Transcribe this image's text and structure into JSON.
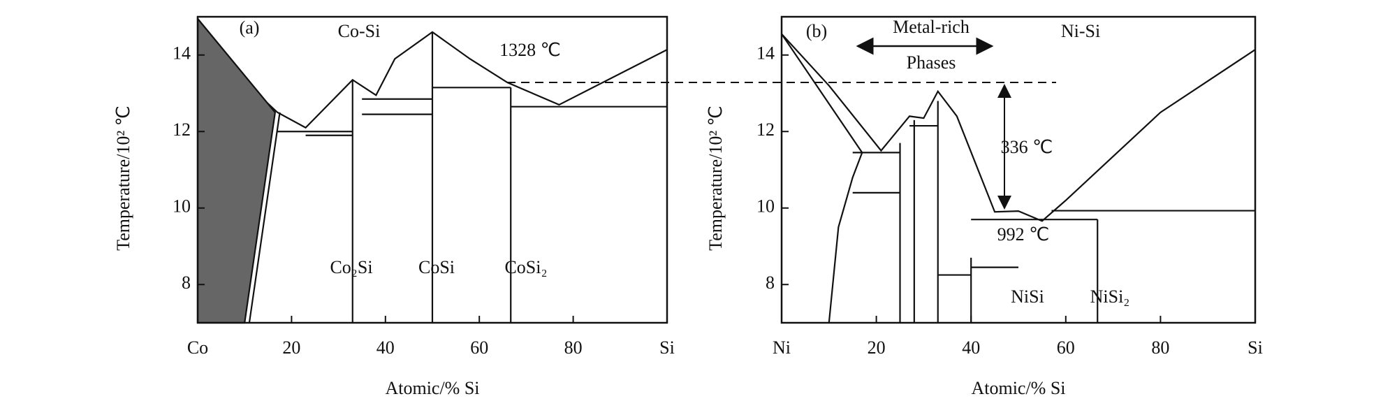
{
  "chart_data": [
    {
      "type": "line",
      "panel": "(a)",
      "system": "Co-Si",
      "xlabel": "Atomic/% Si",
      "ylabel": "Temperature/10² ℃",
      "xlim": [
        0,
        100
      ],
      "ylim": [
        7,
        15
      ],
      "xticks": [
        {
          "value": 0,
          "label": "Co"
        },
        20,
        40,
        60,
        80,
        {
          "value": 100,
          "label": "Si"
        }
      ],
      "yticks": [
        8,
        10,
        12,
        14
      ],
      "annotations": [
        "1328 ℃",
        "Co₂Si",
        "CoSi",
        "CoSi₂"
      ],
      "series": [
        {
          "color": "#111",
          "x": [
            0,
            10,
            17,
            23,
            33,
            38,
            42,
            50,
            58,
            66,
            77,
            100
          ],
          "values": [
            14.95,
            13.3,
            12.5,
            12.1,
            13.35,
            12.95,
            13.9,
            14.6,
            13.9,
            13.28,
            12.7,
            14.14
          ]
        },
        {
          "color": "#111",
          "fill": "#666",
          "x": [
            0,
            16.5,
            10,
            0
          ],
          "values": [
            14.95,
            12.5,
            7,
            7
          ]
        },
        {
          "color": "#111",
          "x": [
            17.5,
            11
          ],
          "values": [
            12.5,
            7
          ]
        },
        {
          "color": "#111",
          "x": [
            17,
            33
          ],
          "values": [
            12.0,
            12.0
          ]
        },
        {
          "color": "#111",
          "x": [
            23,
            33
          ],
          "values": [
            11.9,
            11.9
          ]
        },
        {
          "color": "#111",
          "x": [
            35,
            50
          ],
          "values": [
            12.85,
            12.85
          ]
        },
        {
          "color": "#111",
          "x": [
            35,
            50
          ],
          "values": [
            12.45,
            12.45
          ]
        },
        {
          "color": "#111",
          "x": [
            50,
            66.7
          ],
          "values": [
            13.15,
            13.15
          ]
        },
        {
          "color": "#111",
          "x": [
            66.7,
            100
          ],
          "values": [
            12.65,
            12.65
          ]
        },
        {
          "color": "#111",
          "x": [
            33,
            33
          ],
          "values": [
            7,
            13.35
          ]
        },
        {
          "color": "#111",
          "x": [
            50,
            50
          ],
          "values": [
            7,
            14.6
          ]
        },
        {
          "color": "#111",
          "x": [
            66.7,
            66.7
          ],
          "values": [
            7,
            13.15
          ]
        }
      ]
    },
    {
      "type": "line",
      "panel": "(b)",
      "system": "Ni-Si",
      "xlabel": "Atomic/% Si",
      "ylabel": "Temperature/10² ℃",
      "xlim": [
        0,
        100
      ],
      "ylim": [
        7,
        15
      ],
      "xticks": [
        {
          "value": 0,
          "label": "Ni"
        },
        20,
        40,
        60,
        80,
        {
          "value": 100,
          "label": "Si"
        }
      ],
      "yticks": [
        8,
        10,
        12,
        14
      ],
      "annotations": [
        "Metal-rich",
        "Phases",
        "336 ℃",
        "992 ℃",
        "NiSi",
        "NiSi₂"
      ],
      "series": [
        {
          "color": "#111",
          "x": [
            0,
            10,
            21,
            27,
            30,
            33,
            37,
            45,
            50,
            55,
            60,
            80,
            100
          ],
          "values": [
            14.55,
            13.2,
            11.5,
            12.4,
            12.35,
            13.05,
            12.4,
            9.9,
            9.92,
            9.66,
            10.2,
            12.5,
            14.14
          ]
        },
        {
          "color": "#111",
          "x": [
            0,
            17
          ],
          "values": [
            14.55,
            11.45
          ]
        },
        {
          "color": "#111",
          "x": [
            10,
            12,
            15,
            17
          ],
          "values": [
            7,
            9.5,
            10.8,
            11.45
          ]
        },
        {
          "color": "#111",
          "x": [
            15,
            25
          ],
          "values": [
            11.45,
            11.45
          ]
        },
        {
          "color": "#111",
          "x": [
            15,
            25
          ],
          "values": [
            10.4,
            10.4
          ]
        },
        {
          "color": "#111",
          "x": [
            27,
            33
          ],
          "values": [
            12.15,
            12.15
          ]
        },
        {
          "color": "#111",
          "x": [
            40,
            66.7
          ],
          "values": [
            9.7,
            9.7
          ]
        },
        {
          "color": "#111",
          "x": [
            57,
            100
          ],
          "values": [
            9.93,
            9.93
          ]
        },
        {
          "color": "#111",
          "x": [
            25,
            25
          ],
          "values": [
            7,
            11.7
          ]
        },
        {
          "color": "#111",
          "x": [
            28,
            28
          ],
          "values": [
            7,
            12.3
          ]
        },
        {
          "color": "#111",
          "x": [
            33,
            33
          ],
          "values": [
            7,
            12.8
          ]
        },
        {
          "color": "#111",
          "x": [
            40,
            40
          ],
          "values": [
            7,
            8.7
          ]
        },
        {
          "color": "#111",
          "x": [
            66.7,
            66.7
          ],
          "values": [
            7,
            9.7
          ]
        },
        {
          "color": "#111",
          "x": [
            40,
            50
          ],
          "values": [
            8.45,
            8.45
          ]
        },
        {
          "color": "#111",
          "x": [
            33,
            40
          ],
          "values": [
            8.25,
            8.25
          ]
        }
      ]
    }
  ]
}
